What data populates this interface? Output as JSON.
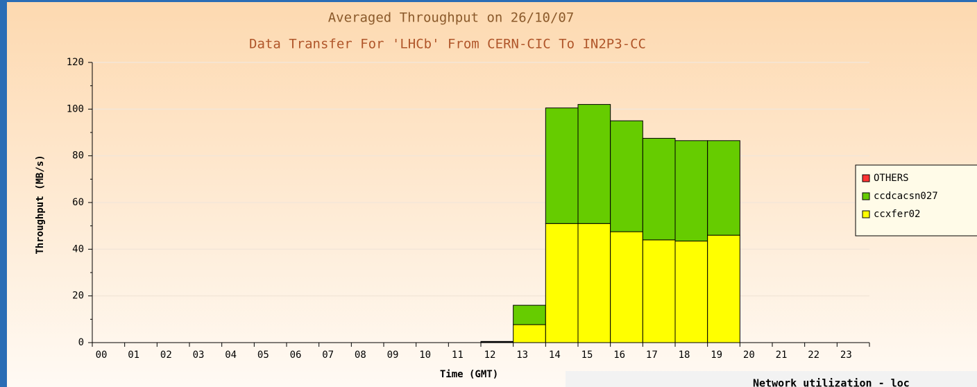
{
  "chart_data": {
    "type": "stacked_bar",
    "title": "Averaged Throughput on 26/10/07",
    "subtitle": "Data Transfer For 'LHCb' From CERN-CIC To IN2P3-CC",
    "x_label": "Time (GMT)",
    "y_label": "Throughput (MB/s)",
    "categories": [
      "00",
      "01",
      "02",
      "03",
      "04",
      "05",
      "06",
      "07",
      "08",
      "09",
      "10",
      "11",
      "12",
      "13",
      "14",
      "15",
      "16",
      "17",
      "18",
      "19",
      "20",
      "21",
      "22",
      "23"
    ],
    "series": [
      {
        "name": "ccxfer02",
        "color": "#ffff00",
        "values": [
          0,
          0,
          0,
          0,
          0,
          0,
          0,
          0,
          0,
          0,
          0,
          0,
          0.3,
          7.7,
          51,
          51,
          47.5,
          44,
          43.5,
          46,
          0,
          0,
          0,
          0
        ]
      },
      {
        "name": "ccdcacsn027",
        "color": "#66cc00",
        "values": [
          0,
          0,
          0,
          0,
          0,
          0,
          0,
          0,
          0,
          0,
          0,
          0,
          0.2,
          8.3,
          49.5,
          51,
          47.5,
          43.5,
          43,
          40.5,
          0,
          0,
          0,
          0
        ]
      },
      {
        "name": "OTHERS",
        "color": "#ff3333",
        "values": [
          0,
          0,
          0,
          0,
          0,
          0,
          0,
          0,
          0,
          0,
          0,
          0,
          0,
          0,
          0,
          0,
          0,
          0,
          0,
          0,
          0,
          0,
          0,
          0
        ]
      }
    ],
    "ylim": [
      0,
      120
    ],
    "yticks": [
      0,
      20,
      40,
      60,
      80,
      100,
      120
    ],
    "grid": true,
    "legend": "right"
  },
  "footer_text": "Network utilization - loc"
}
